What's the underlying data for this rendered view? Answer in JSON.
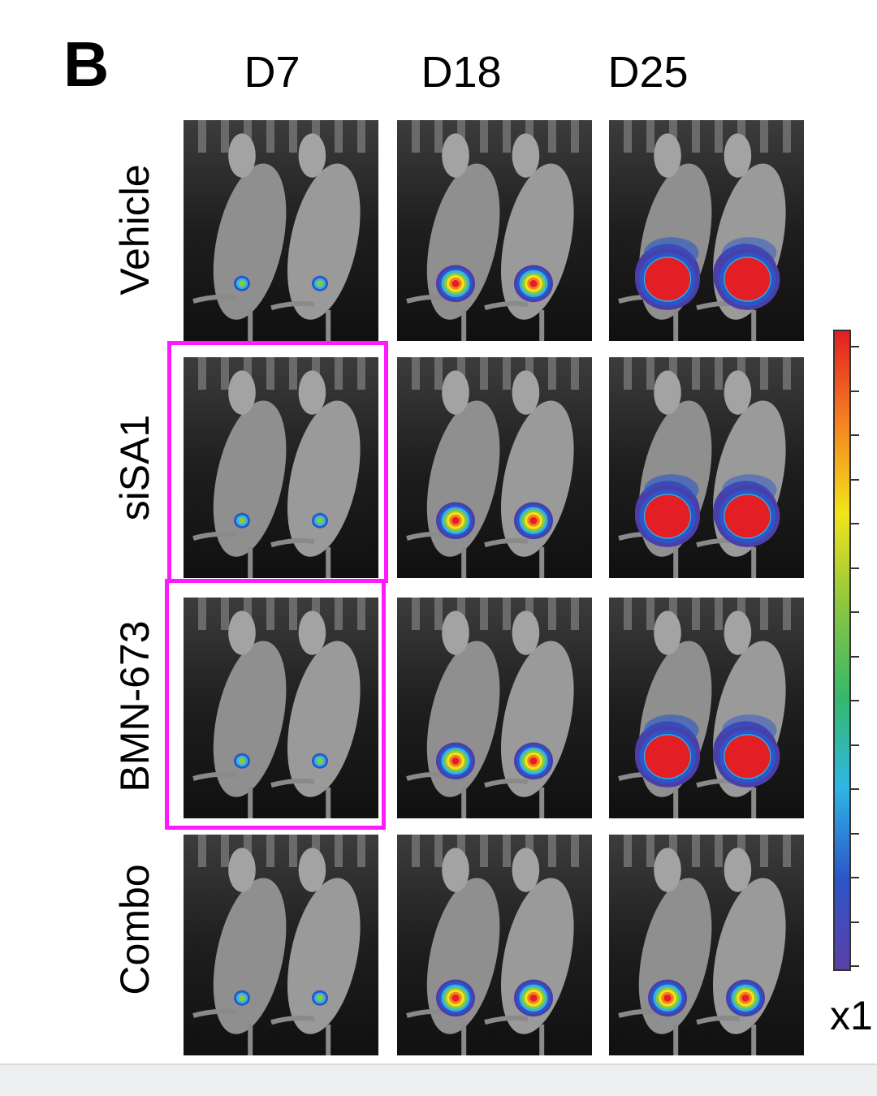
{
  "figure": {
    "panel_label": "B",
    "columns": [
      "D7",
      "D18",
      "D25"
    ],
    "rows": [
      "Vehicle",
      "siSA1",
      "BMN-673",
      "Combo"
    ],
    "highlighted": [
      {
        "row": "siSA1",
        "column": "D7"
      },
      {
        "row": "BMN-673",
        "column": "D7"
      }
    ],
    "highlight_color": "#ff1aff",
    "colorbar": {
      "colors": [
        "#5b3fa8",
        "#2c56c8",
        "#2fb6e6",
        "#36b86a",
        "#8dc63f",
        "#f2e31b",
        "#f58220",
        "#e31e24"
      ],
      "unit_label": "x1"
    },
    "signal_intensity": [
      [
        "low",
        "high",
        "very-high"
      ],
      [
        "low",
        "high",
        "very-high"
      ],
      [
        "low",
        "high",
        "very-high"
      ],
      [
        "low",
        "high",
        "high"
      ]
    ]
  }
}
